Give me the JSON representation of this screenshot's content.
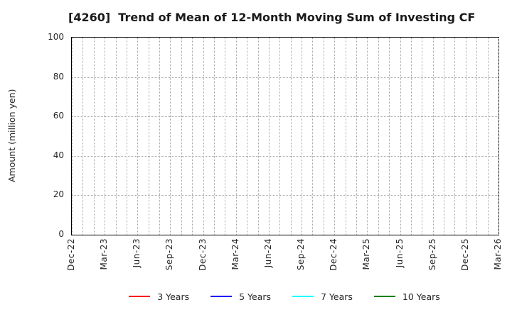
{
  "chart_data": {
    "type": "line",
    "title": "[4260]  Trend of Mean of 12-Month Moving Sum of Investing CF",
    "xlabel": "",
    "ylabel": "Amount (million yen)",
    "ylim": [
      0,
      100
    ],
    "yticks": [
      0,
      20,
      40,
      60,
      80,
      100
    ],
    "x_tick_labels": [
      "Dec-22",
      "Mar-23",
      "Jun-23",
      "Sep-23",
      "Dec-23",
      "Mar-24",
      "Jun-24",
      "Sep-24",
      "Dec-24",
      "Mar-25",
      "Jun-25",
      "Sep-25",
      "Dec-25",
      "Mar-26"
    ],
    "x_tick_interval_months": 3,
    "grid": true,
    "grid_style": "dotted",
    "legend_position": "bottom-center",
    "series": [
      {
        "name": "3 Years",
        "color": "#ff0000",
        "values": []
      },
      {
        "name": "5 Years",
        "color": "#0000ff",
        "values": []
      },
      {
        "name": "7 Years",
        "color": "#00ffff",
        "values": []
      },
      {
        "name": "10 Years",
        "color": "#008000",
        "values": []
      }
    ]
  },
  "colors": {
    "frame": "#000000",
    "gridline": "#a6a6a6",
    "text": "#262626",
    "background": "#ffffff"
  }
}
